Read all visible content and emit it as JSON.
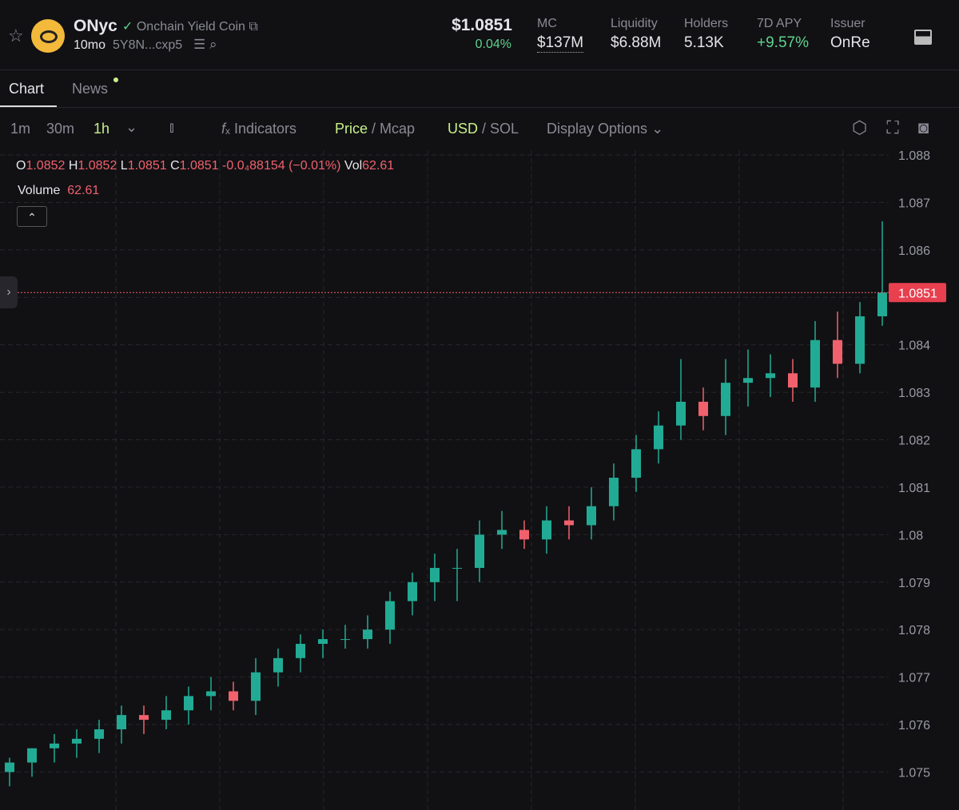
{
  "header": {
    "symbol": "ONyc",
    "name": "Onchain Yield Coin",
    "age": "10mo",
    "address": "5Y8N...cxp5",
    "price": "$1.0851",
    "change": "0.04%",
    "stats": [
      {
        "label": "MC",
        "value": "$137M"
      },
      {
        "label": "Liquidity",
        "value": "$6.88M"
      },
      {
        "label": "Holders",
        "value": "5.13K"
      },
      {
        "label": "7D APY",
        "value": "+9.57%"
      },
      {
        "label": "Issuer",
        "value": "OnRe"
      }
    ]
  },
  "tabs": [
    "Chart",
    "News"
  ],
  "toolbar": {
    "intervals": [
      "1m",
      "30m",
      "1h"
    ],
    "indicators": "Indicators",
    "price": "Price",
    "mcap": "Mcap",
    "usd": "USD",
    "sol": "SOL",
    "display": "Display Options"
  },
  "legend": {
    "o_label": "O",
    "o": "1.0852",
    "h_label": "H",
    "h": "1.0852",
    "l_label": "L",
    "l": "1.0851",
    "c_label": "C",
    "c": "1.0851",
    "change": "-0.0₄88154 (−0.01%)",
    "vol_label": "Vol",
    "vol": "62.61",
    "volume_label": "Volume",
    "volume": "62.61"
  },
  "chart_data": {
    "type": "candlestick",
    "ylim": [
      1.0742,
      1.0881
    ],
    "yticks": [
      1.088,
      1.087,
      1.086,
      1.085,
      1.084,
      1.083,
      1.082,
      1.081,
      1.08,
      1.079,
      1.078,
      1.077,
      1.076,
      1.075
    ],
    "last_price": 1.0851,
    "up_color": "#22ab94",
    "down_color": "#f0616d",
    "open": [
      1.075,
      1.0752,
      1.0755,
      1.0756,
      1.0757,
      1.0759,
      1.0762,
      1.0761,
      1.0763,
      1.0766,
      1.0767,
      1.0765,
      1.0771,
      1.0774,
      1.0777,
      1.0778,
      1.0778,
      1.078,
      1.0786,
      1.079,
      1.0793,
      1.0793,
      1.08,
      1.0801,
      1.0799,
      1.0803,
      1.0802,
      1.0806,
      1.0812,
      1.0818,
      1.0823,
      1.0828,
      1.0825,
      1.0832,
      1.0833,
      1.0834,
      1.0831,
      1.0841,
      1.0836,
      1.0846
    ],
    "high": [
      1.0753,
      1.0755,
      1.0758,
      1.0759,
      1.0761,
      1.0764,
      1.0764,
      1.0766,
      1.0768,
      1.077,
      1.0769,
      1.0774,
      1.0776,
      1.0779,
      1.078,
      1.0781,
      1.0783,
      1.0788,
      1.0792,
      1.0796,
      1.0797,
      1.0803,
      1.0805,
      1.0803,
      1.0806,
      1.0806,
      1.081,
      1.0815,
      1.0821,
      1.0826,
      1.0837,
      1.0831,
      1.0837,
      1.0839,
      1.0838,
      1.0837,
      1.0845,
      1.0847,
      1.0849,
      1.0866
    ],
    "low": [
      1.0747,
      1.0749,
      1.0752,
      1.0753,
      1.0754,
      1.0756,
      1.0758,
      1.0759,
      1.076,
      1.0763,
      1.0763,
      1.0762,
      1.0768,
      1.0771,
      1.0774,
      1.0776,
      1.0776,
      1.0777,
      1.0783,
      1.0786,
      1.0786,
      1.079,
      1.0797,
      1.0797,
      1.0796,
      1.0799,
      1.0799,
      1.0803,
      1.0809,
      1.0815,
      1.082,
      1.0822,
      1.0821,
      1.0827,
      1.0829,
      1.0828,
      1.0828,
      1.0833,
      1.0834,
      1.0844
    ],
    "close": [
      1.0752,
      1.0755,
      1.0756,
      1.0757,
      1.0759,
      1.0762,
      1.0761,
      1.0763,
      1.0766,
      1.0767,
      1.0765,
      1.0771,
      1.0774,
      1.0777,
      1.0778,
      1.0778,
      1.078,
      1.0786,
      1.079,
      1.0793,
      1.0793,
      1.08,
      1.0801,
      1.0799,
      1.0803,
      1.0802,
      1.0806,
      1.0812,
      1.0818,
      1.0823,
      1.0828,
      1.0825,
      1.0832,
      1.0833,
      1.0834,
      1.0831,
      1.0841,
      1.0836,
      1.0846,
      1.0851
    ]
  }
}
